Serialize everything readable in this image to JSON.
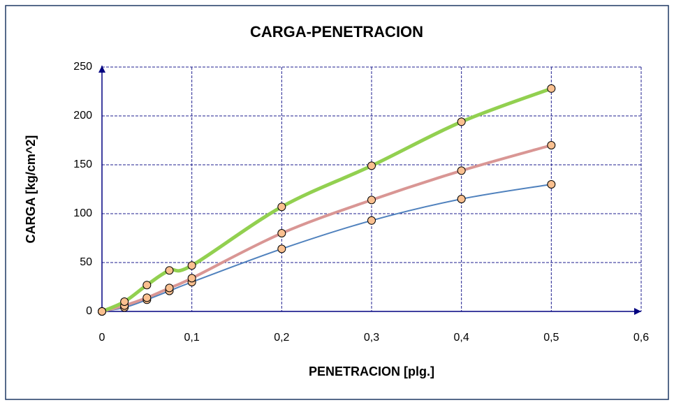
{
  "chart_data": {
    "type": "line",
    "title": "CARGA-PENETRACION",
    "x_label": "PENETRACION [plg.]",
    "y_label": "CARGA [kg/cm^2]",
    "x": [
      0,
      0.025,
      0.05,
      0.075,
      0.1,
      0.2,
      0.3,
      0.4,
      0.5
    ],
    "series": [
      {
        "color": "#4f81bd",
        "width": 2,
        "values": [
          0,
          4,
          12,
          21,
          30,
          64,
          93,
          115,
          130
        ]
      },
      {
        "color": "#d99694",
        "width": 4,
        "values": [
          0,
          6,
          14,
          24,
          34,
          80,
          114,
          144,
          170
        ]
      },
      {
        "color": "#92d050",
        "width": 5,
        "values": [
          0,
          10,
          27,
          42,
          47,
          107,
          149,
          194,
          228
        ]
      }
    ],
    "marker_color": "#fac090",
    "xlim": [
      0,
      0.6
    ],
    "xticks": [
      0,
      {
        "value": 0.1,
        "label": "0,1"
      },
      {
        "value": 0.2,
        "label": "0,2"
      },
      {
        "value": 0.3,
        "label": "0,3"
      },
      {
        "value": 0.4,
        "label": "0,4"
      },
      {
        "value": 0.5,
        "label": "0,5"
      },
      {
        "value": 0.6,
        "label": "0,6"
      }
    ],
    "ylim": [
      0,
      250
    ],
    "yticks": [
      0,
      50,
      100,
      150,
      200,
      250
    ],
    "grid": true
  }
}
